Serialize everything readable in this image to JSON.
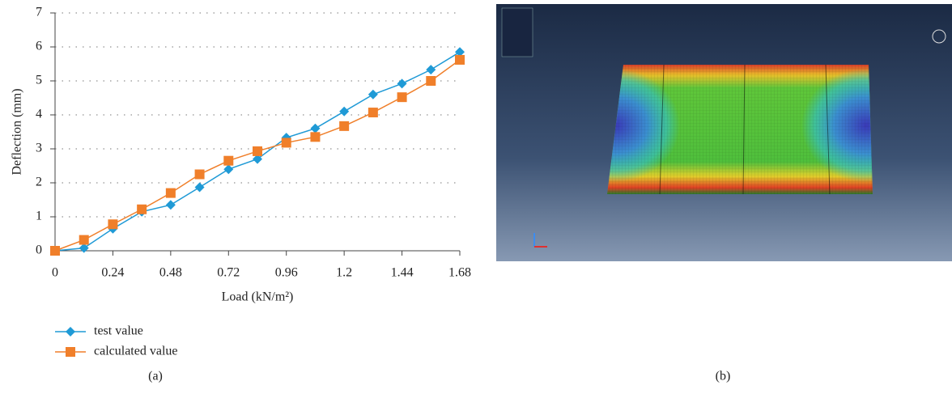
{
  "chart_data": {
    "type": "line",
    "x": [
      0,
      0.12,
      0.24,
      0.36,
      0.48,
      0.6,
      0.72,
      0.84,
      0.96,
      1.08,
      1.2,
      1.32,
      1.44,
      1.56,
      1.68
    ],
    "series": [
      {
        "name": "test value",
        "color": "#1f9ad6",
        "marker": "diamond",
        "values": [
          0,
          0.08,
          0.65,
          1.15,
          1.35,
          1.87,
          2.4,
          2.7,
          3.33,
          3.6,
          4.1,
          4.6,
          4.92,
          5.33,
          5.85
        ]
      },
      {
        "name": "calculated value",
        "color": "#f07f2a",
        "marker": "square",
        "values": [
          0,
          0.32,
          0.78,
          1.22,
          1.7,
          2.25,
          2.65,
          2.93,
          3.18,
          3.35,
          3.67,
          4.07,
          4.52,
          5.0,
          5.62
        ]
      }
    ],
    "xlabel": "Load (kN/m²)",
    "ylabel": "Deflection (mm)",
    "xlim": [
      0,
      1.68
    ],
    "xticks": [
      0,
      0.24,
      0.48,
      0.72,
      0.96,
      1.2,
      1.44,
      1.68
    ],
    "ylim": [
      0,
      7
    ],
    "yticks": [
      0,
      1,
      2,
      3,
      4,
      5,
      6,
      7
    ],
    "grid": true,
    "legend": "bottom-left"
  },
  "panels": {
    "a": "(a)",
    "b": "(b)"
  }
}
